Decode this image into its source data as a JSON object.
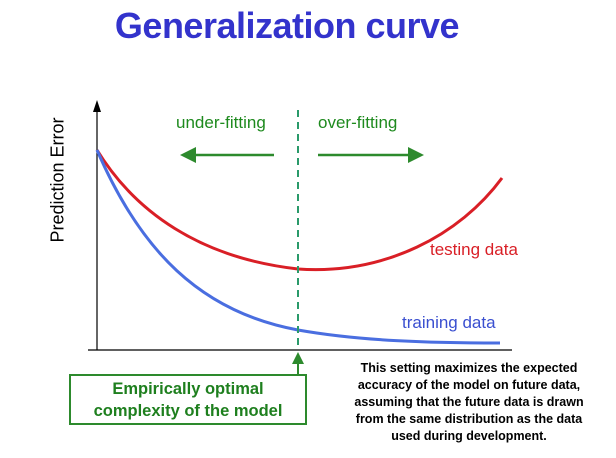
{
  "title": "Generalization curve",
  "axis": {
    "ylabel": "Prediction Error"
  },
  "regions": {
    "under": "under-fitting",
    "over": "over-fitting"
  },
  "curves": {
    "testing": {
      "label": "testing data",
      "color": "#d91f26"
    },
    "training": {
      "label": "training data",
      "color": "#3a4fd0"
    }
  },
  "optimal_box": {
    "lines": [
      "Empirically optimal",
      "complexity of the model"
    ],
    "color": "#2d8a2d"
  },
  "note": {
    "lines": [
      "This setting maximizes the expected",
      "accuracy of the model on future data,",
      "assuming that the future data is drawn",
      "from the same distribution as the data",
      "used during development."
    ]
  },
  "colors": {
    "title": "#3333cc",
    "arrows": "#2d8a2d",
    "axes": "#000000"
  }
}
